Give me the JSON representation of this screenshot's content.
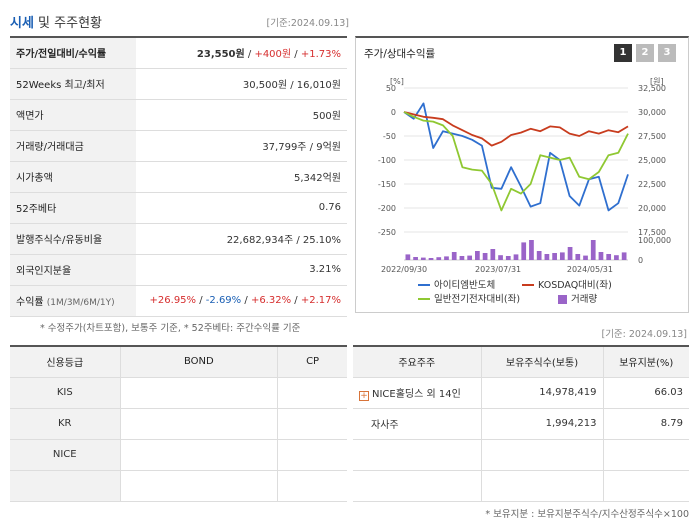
{
  "header": {
    "title_main": "시세",
    "title_rest": " 및 주주현황",
    "base_date": "[기준:2024.09.13]"
  },
  "quote": {
    "rows": [
      {
        "label": "주가/전일대비/수익률",
        "price": "23,550원",
        "sep1": " / ",
        "change": "+400원",
        "sep2": " / ",
        "pct": "+1.73%"
      },
      {
        "label": "52Weeks 최고/최저",
        "value": "30,500원 / 16,010원"
      },
      {
        "label": "액면가",
        "value": "500원"
      },
      {
        "label": "거래량/거래대금",
        "value": "37,799주 / 9억원"
      },
      {
        "label": "시가총액",
        "value": "5,342억원"
      },
      {
        "label": "52주베타",
        "value": "0.76"
      },
      {
        "label": "발행주식수/유동비율",
        "value": "22,682,934주 / 25.10%"
      },
      {
        "label": "외국인지분율",
        "value": "3.21%"
      }
    ],
    "returns": {
      "label": "수익률",
      "label_sub": "(1M/3M/6M/1Y)",
      "r1": "+26.95%",
      "r2": "-2.69%",
      "r3": "+6.32%",
      "r4": "+2.17%",
      "sep": "/ "
    },
    "note": "* 수정주가(차트포함), 보통주 기준, * 52주베타: 주간수익률 기준"
  },
  "chart": {
    "title": "주가/상대수익률",
    "pages": [
      "1",
      "2",
      "3"
    ],
    "left_unit": "[%]",
    "right_unit": "[원]",
    "legend": [
      "아이티엠반도체",
      "KOSDAQ대비(좌)",
      "일반전기전자대비(좌)",
      "거래량"
    ],
    "colors": {
      "itm": "#2f6fcf",
      "kosdaq": "#c83c1e",
      "general": "#8fc832",
      "volume": "#9a64c8"
    }
  },
  "chart_data": {
    "type": "line",
    "x_ticks": [
      "2022/09/30",
      "2023/07/31",
      "2024/05/31"
    ],
    "left_axis": {
      "label": "[%]",
      "ticks": [
        50,
        0,
        -50,
        -100,
        -150,
        -200,
        -250
      ],
      "range": [
        -250,
        50
      ]
    },
    "right_axis": {
      "label": "[원]",
      "ticks": [
        32500,
        30000,
        27500,
        25000,
        22500,
        20000,
        17500
      ],
      "range": [
        17500,
        32500
      ]
    },
    "volume_axis": {
      "ticks": [
        100000,
        0
      ],
      "range": [
        0,
        100000
      ]
    },
    "series": [
      {
        "name": "아이티엠반도체",
        "axis": "left",
        "values": [
          0,
          -14,
          18,
          -75,
          -40,
          -45,
          -50,
          -58,
          -70,
          -158,
          -160,
          -115,
          -155,
          -197,
          -190,
          -85,
          -100,
          -175,
          -195,
          -140,
          -135,
          -205,
          -190,
          -130
        ]
      },
      {
        "name": "KOSDAQ대비(좌)",
        "axis": "left",
        "values": [
          0,
          -5,
          -10,
          -12,
          -15,
          -28,
          -38,
          -48,
          -55,
          -70,
          -62,
          -48,
          -43,
          -35,
          -40,
          -30,
          -32,
          -45,
          -50,
          -40,
          -45,
          -38,
          -42,
          -30
        ]
      },
      {
        "name": "일반전기전자대비(좌)",
        "axis": "left",
        "values": [
          0,
          -10,
          -18,
          -20,
          -28,
          -50,
          -115,
          -120,
          -122,
          -150,
          -205,
          -160,
          -170,
          -150,
          -90,
          -95,
          -100,
          -95,
          -135,
          -140,
          -125,
          -90,
          -85,
          -45
        ]
      },
      {
        "name": "거래량",
        "axis": "volume",
        "type": "bar",
        "values": [
          28000,
          15000,
          12000,
          10000,
          14000,
          18000,
          40000,
          20000,
          22000,
          45000,
          35000,
          55000,
          24000,
          20000,
          28000,
          88000,
          100000,
          45000,
          30000,
          35000,
          38000,
          65000,
          30000,
          22000,
          100000,
          40000,
          30000,
          24000,
          38000
        ]
      }
    ]
  },
  "credit": {
    "headers": [
      "신용등급",
      "BOND",
      "CP"
    ],
    "rows": [
      {
        "label": "KIS",
        "bond": "",
        "cp": ""
      },
      {
        "label": "KR",
        "bond": "",
        "cp": ""
      },
      {
        "label": "NICE",
        "bond": "",
        "cp": ""
      },
      {
        "label": "",
        "bond": "",
        "cp": ""
      }
    ]
  },
  "holders": {
    "base_date": "[기준: 2024.09.13]",
    "headers": [
      "주요주주",
      "보유주식수(보통)",
      "보유지분(%)"
    ],
    "rows": [
      {
        "name": "NICE홀딩스 외 14인",
        "shares": "14,978,419",
        "pct": "66.03",
        "expandable": true
      },
      {
        "name": "자사주",
        "shares": "1,994,213",
        "pct": "8.79",
        "expandable": false
      },
      {
        "name": "",
        "shares": "",
        "pct": ""
      },
      {
        "name": "",
        "shares": "",
        "pct": ""
      }
    ],
    "note": "* 보유지분 : 보유지분주식수/지수산정주식수×100"
  }
}
